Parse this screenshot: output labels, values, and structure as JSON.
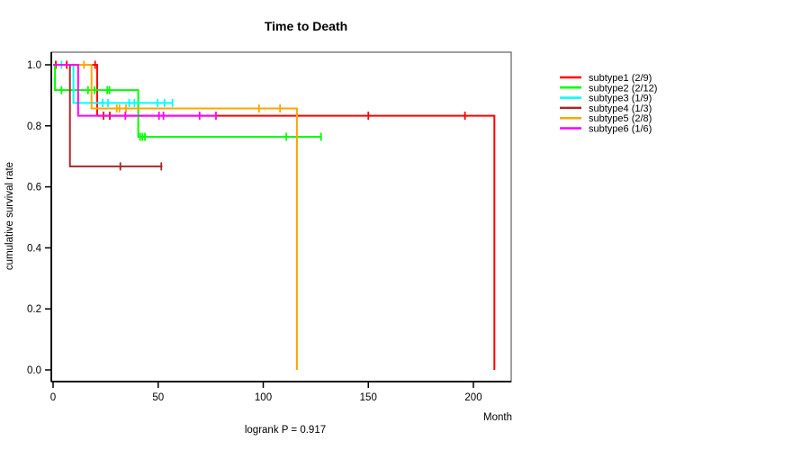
{
  "title": "Time to Death",
  "footnote": "logrank P = 0.917",
  "y_axis": {
    "label": "cumulative survival rate",
    "tick_labels": [
      "1.0",
      "0.8",
      "0.6",
      "0.4",
      "0.2",
      "0.0"
    ],
    "tick_values": [
      1.0,
      0.8,
      0.6,
      0.4,
      0.2,
      0.0
    ]
  },
  "x_axis": {
    "label": "Month",
    "tick_labels": [
      "0",
      "50",
      "100",
      "150",
      "200"
    ],
    "tick_values": [
      0,
      50,
      100,
      150,
      200
    ]
  },
  "legend": {
    "entries": [
      {
        "label": "subtype1 (2/9)",
        "color": "#FF0000"
      },
      {
        "label": "subtype2 (2/12)",
        "color": "#00FF00"
      },
      {
        "label": "subtype3 (1/9)",
        "color": "#00FFFF"
      },
      {
        "label": "subtype4 (1/3)",
        "color": "#A52A2A"
      },
      {
        "label": "subtype5 (2/8)",
        "color": "#FFA500"
      },
      {
        "label": "subtype6 (1/6)",
        "color": "#FF00FF"
      }
    ]
  },
  "chart_data": {
    "type": "line",
    "variant": "kaplan-meier-step",
    "title": "Time to Death",
    "xlabel": "Month",
    "ylabel": "cumulative survival rate",
    "xlim": [
      0,
      218
    ],
    "ylim": [
      0.0,
      1.0
    ],
    "grid": false,
    "legend_position": "right-outside",
    "annotation": "logrank P = 0.917",
    "series": [
      {
        "name": "subtype1",
        "label": "subtype1 (2/9)",
        "color": "#FF0000",
        "events": 2,
        "n": 9,
        "steps": [
          [
            0,
            1.0
          ],
          [
            21,
            1.0
          ],
          [
            21,
            0.833
          ],
          [
            210,
            0.833
          ],
          [
            210,
            0.0
          ]
        ],
        "censors": [
          [
            1.3,
            1.0
          ],
          [
            6.5,
            1.0
          ],
          [
            20,
            1.0
          ],
          [
            24,
            0.833
          ],
          [
            27,
            0.833
          ],
          [
            150,
            0.833
          ],
          [
            196,
            0.833
          ]
        ]
      },
      {
        "name": "subtype2",
        "label": "subtype2 (2/12)",
        "color": "#00FF00",
        "events": 2,
        "n": 12,
        "steps": [
          [
            0,
            1.0
          ],
          [
            0.9,
            1.0
          ],
          [
            0.9,
            0.917
          ],
          [
            40.5,
            0.917
          ],
          [
            40.5,
            0.764
          ],
          [
            127.5,
            0.764
          ]
        ],
        "censors": [
          [
            4,
            0.917
          ],
          [
            16.6,
            0.917
          ],
          [
            19.7,
            0.917
          ],
          [
            25.8,
            0.917
          ],
          [
            26.8,
            0.917
          ],
          [
            41.4,
            0.764
          ],
          [
            42.5,
            0.764
          ],
          [
            43.7,
            0.764
          ],
          [
            111,
            0.764
          ],
          [
            127.5,
            0.764
          ]
        ]
      },
      {
        "name": "subtype3",
        "label": "subtype3 (1/9)",
        "color": "#00FFFF",
        "events": 1,
        "n": 9,
        "steps": [
          [
            0,
            1.0
          ],
          [
            9.7,
            1.0
          ],
          [
            9.7,
            0.875
          ],
          [
            57,
            0.875
          ]
        ],
        "censors": [
          [
            4,
            1.0
          ],
          [
            23.6,
            0.875
          ],
          [
            26.1,
            0.875
          ],
          [
            36.2,
            0.875
          ],
          [
            38.7,
            0.875
          ],
          [
            49.7,
            0.875
          ],
          [
            53,
            0.875
          ],
          [
            56.8,
            0.875
          ]
        ]
      },
      {
        "name": "subtype4",
        "label": "subtype4 (1/3)",
        "color": "#A52A2A",
        "events": 1,
        "n": 3,
        "steps": [
          [
            0,
            1.0
          ],
          [
            8,
            1.0
          ],
          [
            8,
            0.667
          ],
          [
            52,
            0.667
          ]
        ],
        "censors": [
          [
            32,
            0.667
          ],
          [
            51.5,
            0.667
          ]
        ]
      },
      {
        "name": "subtype5",
        "label": "subtype5 (2/8)",
        "color": "#FFA500",
        "events": 2,
        "n": 8,
        "steps": [
          [
            0,
            1.0
          ],
          [
            18.3,
            1.0
          ],
          [
            18.3,
            0.857
          ],
          [
            116,
            0.857
          ],
          [
            116,
            0.0
          ]
        ],
        "censors": [
          [
            14.7,
            1.0
          ],
          [
            30.3,
            0.857
          ],
          [
            31.6,
            0.857
          ],
          [
            34.7,
            0.857
          ],
          [
            98,
            0.857
          ],
          [
            108,
            0.857
          ]
        ]
      },
      {
        "name": "subtype6",
        "label": "subtype6 (1/6)",
        "color": "#FF00FF",
        "events": 1,
        "n": 6,
        "steps": [
          [
            0,
            1.0
          ],
          [
            11.9,
            1.0
          ],
          [
            11.9,
            0.833
          ],
          [
            77.5,
            0.833
          ]
        ],
        "censors": [
          [
            34.4,
            0.833
          ],
          [
            50.4,
            0.833
          ],
          [
            52.5,
            0.833
          ],
          [
            69.7,
            0.833
          ],
          [
            77.5,
            0.833
          ]
        ]
      }
    ]
  }
}
